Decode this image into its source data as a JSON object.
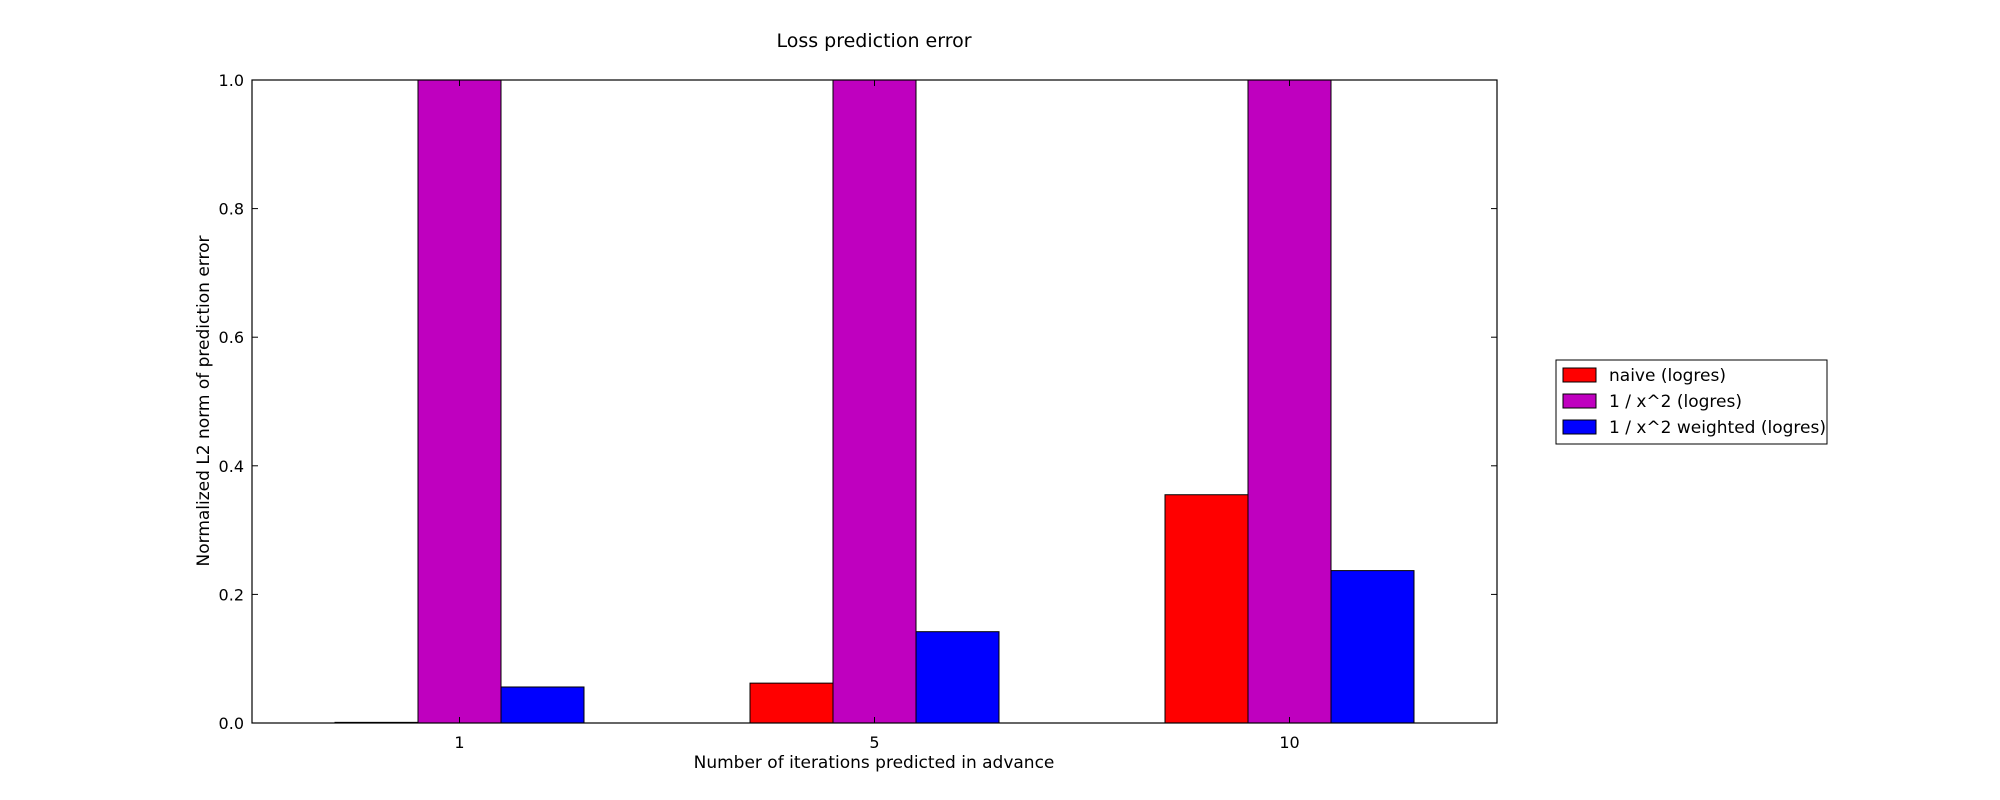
{
  "chart_data": {
    "type": "bar",
    "title": "Loss prediction error",
    "xlabel": "Number of iterations predicted in advance",
    "ylabel": "Normalized L2 norm of prediction error",
    "categories": [
      "1",
      "5",
      "10"
    ],
    "series": [
      {
        "name": "naive (logres)",
        "color": "#ff0000",
        "values": [
          0.001,
          0.062,
          0.355
        ]
      },
      {
        "name": "1 / x^2 (logres)",
        "color": "#bf00bf",
        "values": [
          1.0,
          1.0,
          1.0
        ]
      },
      {
        "name": "1 / x^2 weighted (logres)",
        "color": "#0000ff",
        "values": [
          0.056,
          0.142,
          0.237
        ]
      }
    ],
    "ylim": [
      0,
      1.0
    ],
    "yticks": [
      "0.0",
      "0.2",
      "0.4",
      "0.6",
      "0.8",
      "1.0"
    ],
    "grid": false,
    "legend_position": "right"
  }
}
